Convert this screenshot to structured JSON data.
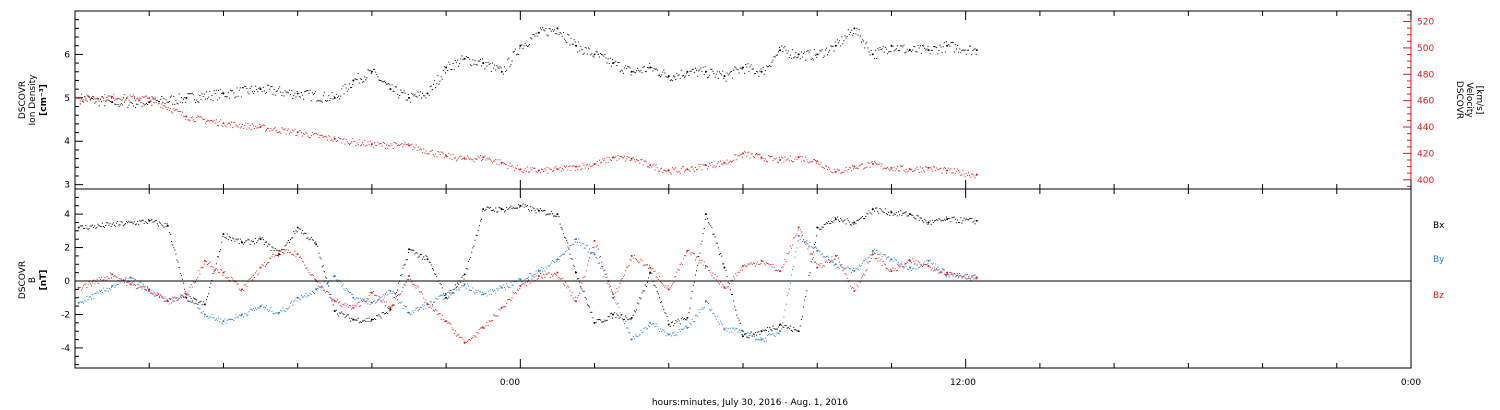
{
  "xlabel": "hours:minutes, July 30, 2016 - Aug.  1, 2016",
  "x_ticks": [
    "0:00",
    "12:00",
    "0:00"
  ],
  "chart_data": [
    {
      "type": "scatter",
      "panel": "top",
      "ylabel_left": [
        "DSCOVR",
        "Ion Density",
        "[cm⁻³]"
      ],
      "ylabel_right": [
        "DSCOVR",
        "Velocity",
        "[km/s]"
      ],
      "ylim_left": [
        2.9,
        7.0
      ],
      "ylim_right": [
        393,
        528
      ],
      "yticks_left": [
        "3",
        "4",
        "5",
        "6"
      ],
      "yticks_right": [
        "400",
        "420",
        "440",
        "460",
        "480",
        "500",
        "520"
      ],
      "x_unit": "hours from 0:00 July 31, 2016",
      "xlim": [
        -12,
        24
      ],
      "series": [
        {
          "name": "",
          "axis": "left",
          "color": "#000000",
          "x": [
            -11.9,
            -11.0,
            -10.0,
            -9.0,
            -8.0,
            -7.0,
            -6.0,
            -5.0,
            -4.5,
            -4.0,
            -3.5,
            -3.0,
            -2.5,
            -2.0,
            -1.5,
            -1.0,
            -0.5,
            0.0,
            0.5,
            1.0,
            1.5,
            2.0,
            2.5,
            3.0,
            3.5,
            4.0,
            4.5,
            5.0,
            5.5,
            6.0,
            6.5,
            7.0,
            7.5,
            8.0,
            8.5,
            9.0,
            9.5,
            10.0,
            10.5,
            11.0,
            11.5,
            12.3
          ],
          "y": [
            5.0,
            4.9,
            4.9,
            5.0,
            5.1,
            5.2,
            5.1,
            5.0,
            5.4,
            5.6,
            5.2,
            5.0,
            5.1,
            5.7,
            5.9,
            5.8,
            5.6,
            6.2,
            6.5,
            6.6,
            6.2,
            6.0,
            5.8,
            5.6,
            5.7,
            5.5,
            5.6,
            5.6,
            5.5,
            5.7,
            5.6,
            6.1,
            6.0,
            6.0,
            6.2,
            6.6,
            6.0,
            6.2,
            6.1,
            6.1,
            6.2,
            6.1
          ]
        },
        {
          "name": "",
          "axis": "right",
          "color": "#e0191e",
          "x": [
            -11.9,
            -11.0,
            -10.0,
            -9.0,
            -8.0,
            -7.0,
            -6.0,
            -5.0,
            -4.0,
            -3.0,
            -2.0,
            -1.5,
            -1.0,
            -0.5,
            0.0,
            0.5,
            1.0,
            1.5,
            2.0,
            2.5,
            3.0,
            3.5,
            4.0,
            4.5,
            5.0,
            5.5,
            6.0,
            6.5,
            7.0,
            7.5,
            8.0,
            8.5,
            9.0,
            9.5,
            10.0,
            10.5,
            11.0,
            11.5,
            12.3
          ],
          "y": [
            462,
            463,
            462,
            448,
            443,
            440,
            436,
            431,
            427,
            426,
            418,
            416,
            417,
            413,
            408,
            407,
            408,
            410,
            412,
            417,
            416,
            411,
            407,
            408,
            411,
            413,
            420,
            417,
            415,
            417,
            414,
            406,
            410,
            412,
            409,
            408,
            409,
            407,
            404
          ]
        }
      ]
    },
    {
      "type": "scatter",
      "panel": "bottom",
      "ylabel_left": [
        "DSCOVR",
        "B",
        "[nT]"
      ],
      "ylim": [
        -5.2,
        5.5
      ],
      "yticks": [
        "-4",
        "-2",
        "0",
        "2",
        "4"
      ],
      "x_unit": "hours from 0:00 July 31, 2016",
      "xlim": [
        -12,
        24
      ],
      "zero_line": true,
      "series": [
        {
          "name": "Bx",
          "color": "#000000",
          "x": [
            -11.9,
            -10.0,
            -9.5,
            -9.0,
            -8.5,
            -8.0,
            -7.5,
            -7.0,
            -6.5,
            -6.0,
            -5.5,
            -5.0,
            -4.5,
            -4.0,
            -3.5,
            -3.0,
            -2.5,
            -2.0,
            -1.5,
            -1.0,
            -0.5,
            0.0,
            0.5,
            1.0,
            1.5,
            2.0,
            2.5,
            3.0,
            3.5,
            4.0,
            4.5,
            5.0,
            5.5,
            6.0,
            6.5,
            7.0,
            7.5,
            8.0,
            8.5,
            9.0,
            9.5,
            10.0,
            10.5,
            11.0,
            11.5,
            12.3
          ],
          "y": [
            3.2,
            3.6,
            3.3,
            -1.0,
            -1.4,
            2.8,
            2.3,
            2.5,
            1.6,
            3.2,
            2.2,
            -1.8,
            -2.3,
            -2.3,
            -1.7,
            1.9,
            1.3,
            -1.0,
            0.4,
            4.3,
            4.3,
            4.5,
            4.2,
            4.0,
            0.5,
            -2.5,
            -2.0,
            -2.2,
            0.5,
            -2.6,
            -2.2,
            4.0,
            0.8,
            -3.3,
            -3.0,
            -2.6,
            -3.0,
            3.2,
            3.7,
            3.5,
            4.3,
            4.1,
            4.0,
            3.5,
            3.7,
            3.6
          ]
        },
        {
          "name": "By",
          "color": "#1f7fd0",
          "x": [
            -11.9,
            -11.0,
            -10.5,
            -10.0,
            -9.5,
            -9.0,
            -8.5,
            -8.0,
            -7.5,
            -7.0,
            -6.5,
            -6.0,
            -5.5,
            -5.0,
            -4.5,
            -4.0,
            -3.5,
            -3.0,
            -2.5,
            -2.0,
            -1.5,
            -1.0,
            -0.5,
            0.0,
            0.5,
            1.0,
            1.5,
            2.0,
            2.5,
            3.0,
            3.5,
            4.0,
            4.5,
            5.0,
            5.5,
            6.0,
            6.5,
            7.0,
            7.5,
            8.0,
            8.5,
            9.0,
            9.5,
            10.0,
            10.5,
            11.0,
            11.5,
            12.3
          ],
          "y": [
            -1.3,
            -0.3,
            0.2,
            -0.6,
            -1.2,
            -0.8,
            -2.0,
            -2.4,
            -2.0,
            -1.5,
            -1.9,
            -1.0,
            -0.5,
            0.3,
            -1.0,
            -1.3,
            -0.6,
            -1.9,
            -1.4,
            -0.8,
            -0.2,
            -0.8,
            -0.4,
            0.1,
            0.6,
            1.3,
            2.5,
            1.6,
            -0.8,
            -3.5,
            -2.5,
            -3.2,
            -2.8,
            -1.2,
            -2.9,
            -3.0,
            -3.5,
            -3.0,
            2.7,
            1.8,
            1.0,
            0.6,
            1.8,
            1.3,
            0.8,
            1.2,
            0.4,
            0.2
          ]
        },
        {
          "name": "Bz",
          "color": "#e0191e",
          "x": [
            -11.9,
            -11.0,
            -10.5,
            -10.0,
            -9.5,
            -9.0,
            -8.5,
            -8.0,
            -7.5,
            -7.0,
            -6.5,
            -6.0,
            -5.5,
            -5.0,
            -4.5,
            -4.0,
            -3.5,
            -3.0,
            -2.5,
            -2.0,
            -1.5,
            -1.0,
            -0.5,
            0.0,
            0.5,
            1.0,
            1.5,
            2.0,
            2.5,
            3.0,
            3.5,
            4.0,
            4.5,
            5.0,
            5.5,
            6.0,
            6.5,
            7.0,
            7.5,
            8.0,
            8.5,
            9.0,
            9.5,
            10.0,
            10.5,
            11.0,
            11.5,
            12.3
          ],
          "y": [
            -0.4,
            0.4,
            -0.2,
            -0.5,
            -1.2,
            -0.8,
            1.2,
            0.5,
            -0.5,
            0.8,
            1.8,
            1.6,
            0.0,
            -1.2,
            -1.6,
            -0.7,
            -1.6,
            0.3,
            -1.4,
            -2.4,
            -3.7,
            -2.8,
            -1.6,
            -0.3,
            0.3,
            0.5,
            -1.2,
            2.4,
            -1.0,
            1.5,
            0.8,
            -0.5,
            1.8,
            0.9,
            -0.4,
            0.9,
            1.2,
            0.6,
            3.2,
            0.8,
            1.5,
            -0.6,
            1.6,
            0.6,
            1.2,
            0.9,
            0.5,
            0.2
          ]
        }
      ]
    }
  ]
}
